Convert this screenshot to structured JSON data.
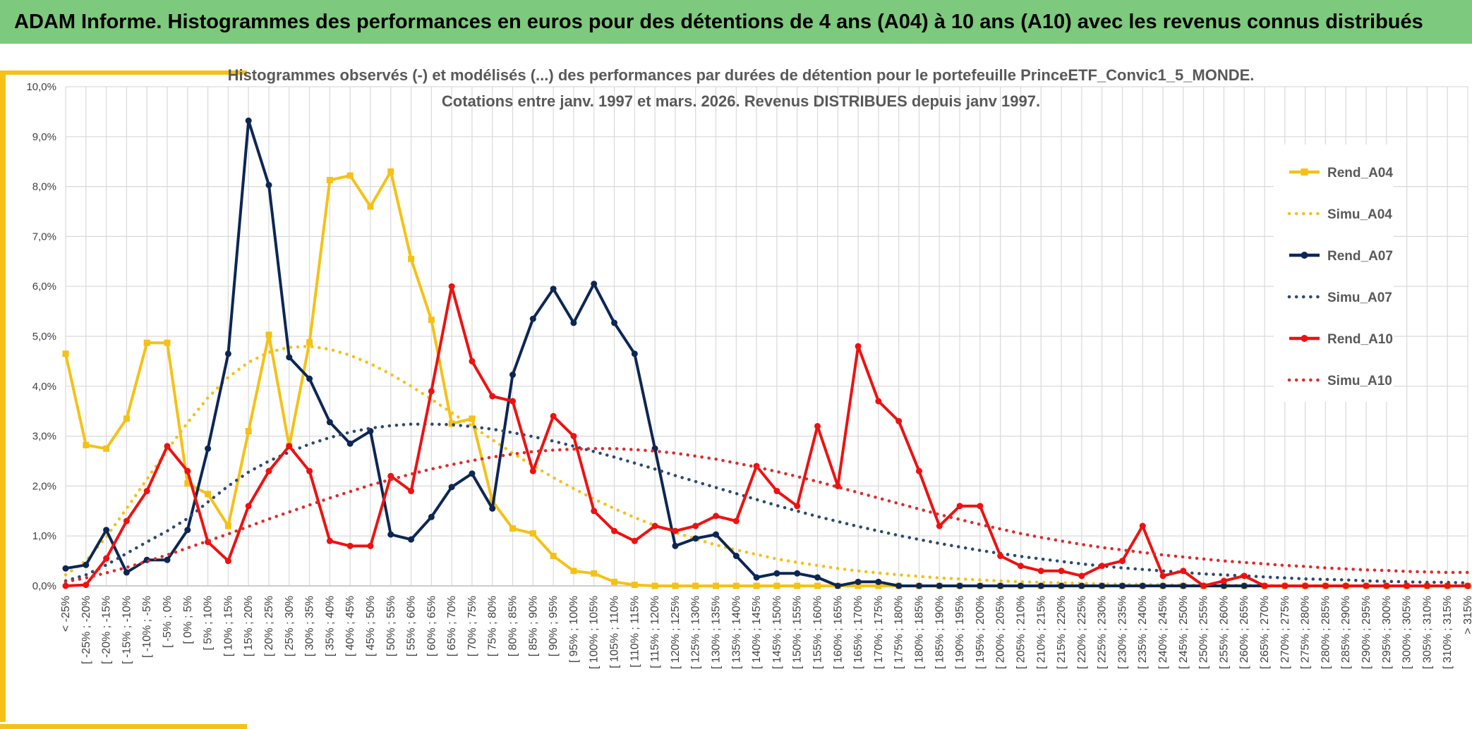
{
  "page": {
    "banner_title": "ADAM Informe. Histogrammes des performances en euros pour des détentions de 4 ans (A04) à 10 ans (A10) avec les revenus connus distribués"
  },
  "chart_data": {
    "type": "line",
    "title": "Histogrammes observés (-) et modélisés (...) des performances  par durées de détention pour le portefeuille PrinceETF_Convic1_5_MONDE.",
    "subtitle": "Cotations entre janv. 1997 et mars. 2026. Revenus DISTRIBUES depuis janv 1997.",
    "xlabel": "",
    "ylabel": "",
    "ylim": [
      0,
      10
    ],
    "y_ticks": [
      "0,0%",
      "1,0%",
      "2,0%",
      "3,0%",
      "4,0%",
      "5,0%",
      "6,0%",
      "7,0%",
      "8,0%",
      "9,0%",
      "10,0%"
    ],
    "grid": true,
    "legend_position": "right",
    "categories": [
      "< -25%",
      "[ -25% ; -20%",
      "[ -20% ; -15%",
      "[ -15% ; -10%",
      "[ -10% ; -5%",
      "[ -5% ; 0%",
      "[ 0% ; 5%",
      "[ 5% ; 10%",
      "[ 10% ; 15%",
      "[ 15% ; 20%",
      "[ 20% ; 25%",
      "[ 25% ; 30%",
      "[ 30% ; 35%",
      "[ 35% ; 40%",
      "[ 40% ; 45%",
      "[ 45% ; 50%",
      "[ 50% ; 55%",
      "[ 55% ; 60%",
      "[ 60% ; 65%",
      "[ 65% ; 70%",
      "[ 70% ; 75%",
      "[ 75% ; 80%",
      "[ 80% ; 85%",
      "[ 85% ; 90%",
      "[ 90% ; 95%",
      "[ 95% ; 100%",
      "[ 100% ; 105%",
      "[ 105% ; 110%",
      "[ 110% ; 115%",
      "[ 115% ; 120%",
      "[ 120% ; 125%",
      "[ 125% ; 130%",
      "[ 130% ; 135%",
      "[ 135% ; 140%",
      "[ 140% ; 145%",
      "[ 145% ; 150%",
      "[ 150% ; 155%",
      "[ 155% ; 160%",
      "[ 160% ; 165%",
      "[ 165% ; 170%",
      "[ 170% ; 175%",
      "[ 175% ; 180%",
      "[ 180% ; 185%",
      "[ 185% ; 190%",
      "[ 190% ; 195%",
      "[ 195% ; 200%",
      "[ 200% ; 205%",
      "[ 205% ; 210%",
      "[ 210% ; 215%",
      "[ 215% ; 220%",
      "[ 220% ; 225%",
      "[ 225% ; 230%",
      "[ 230% ; 235%",
      "[ 235% ; 240%",
      "[ 240% ; 245%",
      "[ 245% ; 250%",
      "[ 250% ; 255%",
      "[ 255% ; 260%",
      "[ 260% ; 265%",
      "[ 265% ; 270%",
      "[ 270% ; 275%",
      "[ 275% ; 280%",
      "[ 280% ; 285%",
      "[ 285% ; 290%",
      "[ 290% ; 295%",
      "[ 295% ; 300%",
      "[ 300% ; 305%",
      "[ 305% ; 310%",
      "[ 310% ; 315%",
      "> 315%"
    ],
    "series": [
      {
        "name": "Rend_A04",
        "color": "#f5c116",
        "style": "solid",
        "marker": "square",
        "values": [
          4.65,
          2.82,
          2.75,
          3.35,
          4.87,
          4.87,
          2.05,
          1.84,
          1.2,
          3.1,
          5.03,
          2.8,
          4.88,
          8.13,
          8.22,
          7.6,
          8.3,
          6.55,
          5.33,
          3.25,
          3.35,
          1.7,
          1.15,
          1.05,
          0.6,
          0.3,
          0.25,
          0.08,
          0.02,
          0,
          0,
          0,
          0,
          0,
          0,
          0,
          0,
          0,
          0,
          0,
          0,
          0,
          0,
          0,
          0,
          0,
          0,
          0,
          0,
          0,
          0,
          0,
          0,
          0,
          0,
          0,
          0,
          0,
          0,
          0,
          0,
          0,
          0,
          0,
          0,
          0,
          0,
          0,
          0,
          0
        ]
      },
      {
        "name": "Simu_A04",
        "color": "#f5c116",
        "style": "dotted",
        "marker": "none",
        "values": [
          0.22,
          0.5,
          0.98,
          1.55,
          2.14,
          2.72,
          3.27,
          3.77,
          4.18,
          4.48,
          4.68,
          4.78,
          4.8,
          4.74,
          4.62,
          4.45,
          4.24,
          4.0,
          3.74,
          3.47,
          3.2,
          2.93,
          2.66,
          2.41,
          2.17,
          1.95,
          1.74,
          1.55,
          1.37,
          1.21,
          1.07,
          0.94,
          0.82,
          0.72,
          0.63,
          0.54,
          0.47,
          0.41,
          0.35,
          0.3,
          0.26,
          0.22,
          0.19,
          0.16,
          0.14,
          0.12,
          0.1,
          0.08,
          0.07,
          0.06,
          0.05,
          0.04,
          0.03,
          0.03,
          0.02,
          0.02,
          0.01,
          0.01,
          0.01,
          0.01,
          0,
          0,
          0,
          0,
          0,
          0,
          0,
          0,
          0,
          0
        ]
      },
      {
        "name": "Rend_A07",
        "color": "#0d2654",
        "style": "solid",
        "marker": "circle",
        "values": [
          0.35,
          0.42,
          1.12,
          0.27,
          0.52,
          0.52,
          1.12,
          2.75,
          4.65,
          9.32,
          8.03,
          4.58,
          4.15,
          3.28,
          2.85,
          3.1,
          1.03,
          0.93,
          1.38,
          1.98,
          2.25,
          1.55,
          4.23,
          5.35,
          5.95,
          5.27,
          6.05,
          5.27,
          4.65,
          2.75,
          0.8,
          0.95,
          1.03,
          0.6,
          0.17,
          0.25,
          0.25,
          0.17,
          0,
          0.08,
          0.08,
          0,
          0,
          0,
          0,
          0,
          0,
          0,
          0,
          0,
          0,
          0,
          0,
          0,
          0,
          0,
          0,
          0,
          0,
          0,
          0,
          0,
          0,
          0,
          0,
          0,
          0,
          0,
          0,
          0
        ]
      },
      {
        "name": "Simu_A07",
        "color": "#2c4a6e",
        "style": "dotted",
        "marker": "none",
        "values": [
          0.1,
          0.22,
          0.42,
          0.65,
          0.88,
          1.1,
          1.35,
          1.68,
          2.0,
          2.28,
          2.5,
          2.68,
          2.84,
          2.97,
          3.08,
          3.16,
          3.21,
          3.24,
          3.24,
          3.23,
          3.19,
          3.14,
          3.07,
          2.99,
          2.9,
          2.8,
          2.69,
          2.58,
          2.46,
          2.34,
          2.21,
          2.09,
          1.97,
          1.85,
          1.73,
          1.61,
          1.5,
          1.39,
          1.29,
          1.19,
          1.1,
          1.01,
          0.93,
          0.85,
          0.78,
          0.71,
          0.65,
          0.59,
          0.54,
          0.49,
          0.44,
          0.4,
          0.36,
          0.33,
          0.3,
          0.27,
          0.24,
          0.22,
          0.2,
          0.18,
          0.16,
          0.14,
          0.13,
          0.12,
          0.1,
          0.09,
          0.08,
          0.07,
          0.07,
          0.06
        ]
      },
      {
        "name": "Rend_A10",
        "color": "#ee1111",
        "style": "solid",
        "marker": "circle",
        "values": [
          0,
          0.02,
          0.55,
          1.3,
          1.9,
          2.8,
          2.3,
          0.88,
          0.5,
          1.6,
          2.3,
          2.8,
          2.3,
          0.9,
          0.8,
          0.8,
          2.2,
          1.9,
          3.9,
          6.0,
          4.5,
          3.8,
          3.7,
          2.3,
          3.4,
          3.0,
          1.5,
          1.1,
          0.9,
          1.2,
          1.1,
          1.2,
          1.4,
          1.3,
          2.4,
          1.9,
          1.6,
          3.2,
          2.0,
          4.8,
          3.7,
          3.3,
          2.3,
          1.2,
          1.6,
          1.6,
          0.6,
          0.4,
          0.3,
          0.3,
          0.2,
          0.4,
          0.5,
          1.2,
          0.2,
          0.3,
          0,
          0.1,
          0.2,
          0,
          0,
          0,
          0,
          0,
          0,
          0,
          0,
          0,
          0,
          0
        ]
      },
      {
        "name": "Simu_A10",
        "color": "#e02a2a",
        "style": "dotted",
        "marker": "none",
        "values": [
          0.08,
          0.16,
          0.26,
          0.37,
          0.49,
          0.62,
          0.76,
          0.9,
          1.04,
          1.19,
          1.34,
          1.48,
          1.62,
          1.76,
          1.89,
          2.02,
          2.13,
          2.24,
          2.34,
          2.43,
          2.51,
          2.58,
          2.64,
          2.69,
          2.72,
          2.74,
          2.75,
          2.75,
          2.73,
          2.7,
          2.66,
          2.6,
          2.54,
          2.46,
          2.38,
          2.29,
          2.19,
          2.09,
          1.98,
          1.87,
          1.76,
          1.65,
          1.54,
          1.43,
          1.33,
          1.23,
          1.14,
          1.05,
          0.97,
          0.9,
          0.83,
          0.77,
          0.72,
          0.67,
          0.62,
          0.58,
          0.54,
          0.5,
          0.47,
          0.44,
          0.41,
          0.39,
          0.36,
          0.34,
          0.32,
          0.31,
          0.29,
          0.28,
          0.27,
          0.27
        ]
      }
    ]
  }
}
